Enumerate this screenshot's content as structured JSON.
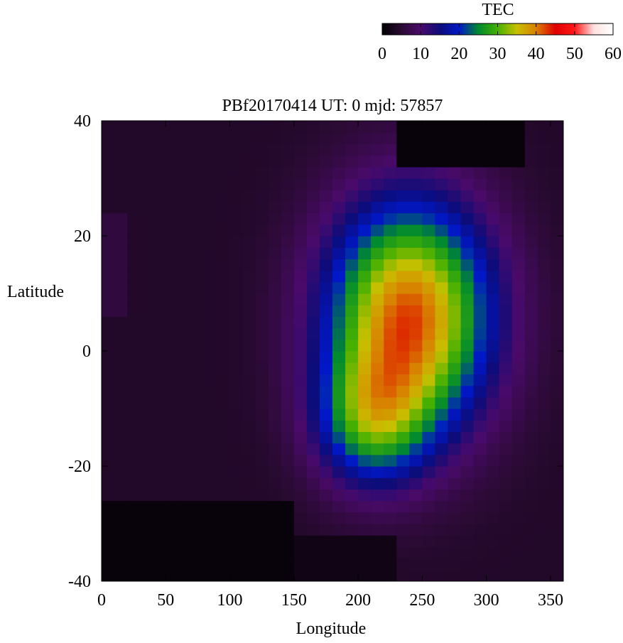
{
  "chart_data": {
    "type": "heatmap",
    "title": "PBf20170414  UT: 0  mjd: 57857",
    "xlabel": "Longitude",
    "ylabel": "Latitude",
    "xlim": [
      0,
      360
    ],
    "ylim": [
      -40,
      40
    ],
    "x_ticks": [
      0,
      50,
      100,
      150,
      200,
      250,
      300,
      350
    ],
    "y_ticks": [
      -40,
      -20,
      0,
      20,
      40
    ],
    "grid": false,
    "colorbar": {
      "label": "TEC",
      "range": [
        0,
        60
      ],
      "ticks": [
        0,
        10,
        20,
        30,
        40,
        50,
        60
      ],
      "colors": [
        "#000000",
        "#2a0a33",
        "#4a0a6a",
        "#0c0c7a",
        "#0018c8",
        "#008a30",
        "#45b000",
        "#c8c000",
        "#d88000",
        "#e00000",
        "#ff1818",
        "#ffe0e0",
        "#ffffff"
      ]
    },
    "grid_resolution": {
      "dlon": 10,
      "dlat": 2
    },
    "model": {
      "note_unused": false,
      "main_peak": {
        "lon": 240,
        "lat": 6,
        "value": 38
      },
      "south_lobe": {
        "lon": 210,
        "lat": -12,
        "value": 33
      },
      "background_value": 4,
      "west_band": {
        "lon_max": 20,
        "lat_min": 5,
        "lat_max": 25,
        "value": 6
      }
    }
  }
}
